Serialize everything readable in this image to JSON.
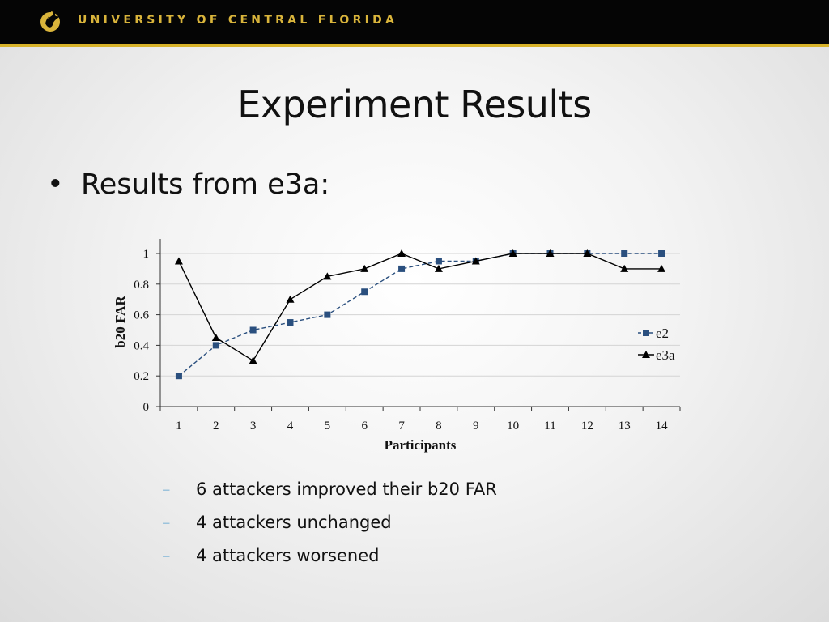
{
  "header": {
    "university": "UNIVERSITY OF CENTRAL FLORIDA",
    "logo_icon": "pegasus-logo-icon",
    "bar_color": "#050505",
    "accent_color": "#d8b32a"
  },
  "slide": {
    "title": "Experiment Results",
    "bullet": "Results from e3a:",
    "sub_bullets": [
      "6 attackers improved their b20 FAR",
      "4 attackers unchanged",
      "4 attackers worsened"
    ]
  },
  "chart_data": {
    "type": "line",
    "title": "",
    "xlabel": "Participants",
    "ylabel": "b20 FAR",
    "categories": [
      "1",
      "2",
      "3",
      "4",
      "5",
      "6",
      "7",
      "8",
      "9",
      "10",
      "11",
      "12",
      "13",
      "14"
    ],
    "ylim": [
      0,
      1
    ],
    "yticks": [
      "0",
      "0.2",
      "0.4",
      "0.6",
      "0.8",
      "1"
    ],
    "grid": "horizontal",
    "legend_position": "right",
    "series": [
      {
        "name": "e2",
        "color": "#2a4f7e",
        "marker": "square",
        "dashed": true,
        "values": [
          0.2,
          0.4,
          0.5,
          0.55,
          0.6,
          0.75,
          0.9,
          0.95,
          0.95,
          1,
          1,
          1,
          1,
          1
        ]
      },
      {
        "name": "e3a",
        "color": "#000000",
        "marker": "triangle",
        "dashed": false,
        "values": [
          0.95,
          0.45,
          0.3,
          0.7,
          0.85,
          0.9,
          1,
          0.9,
          0.95,
          1,
          1,
          1,
          0.9,
          0.9
        ]
      }
    ]
  }
}
